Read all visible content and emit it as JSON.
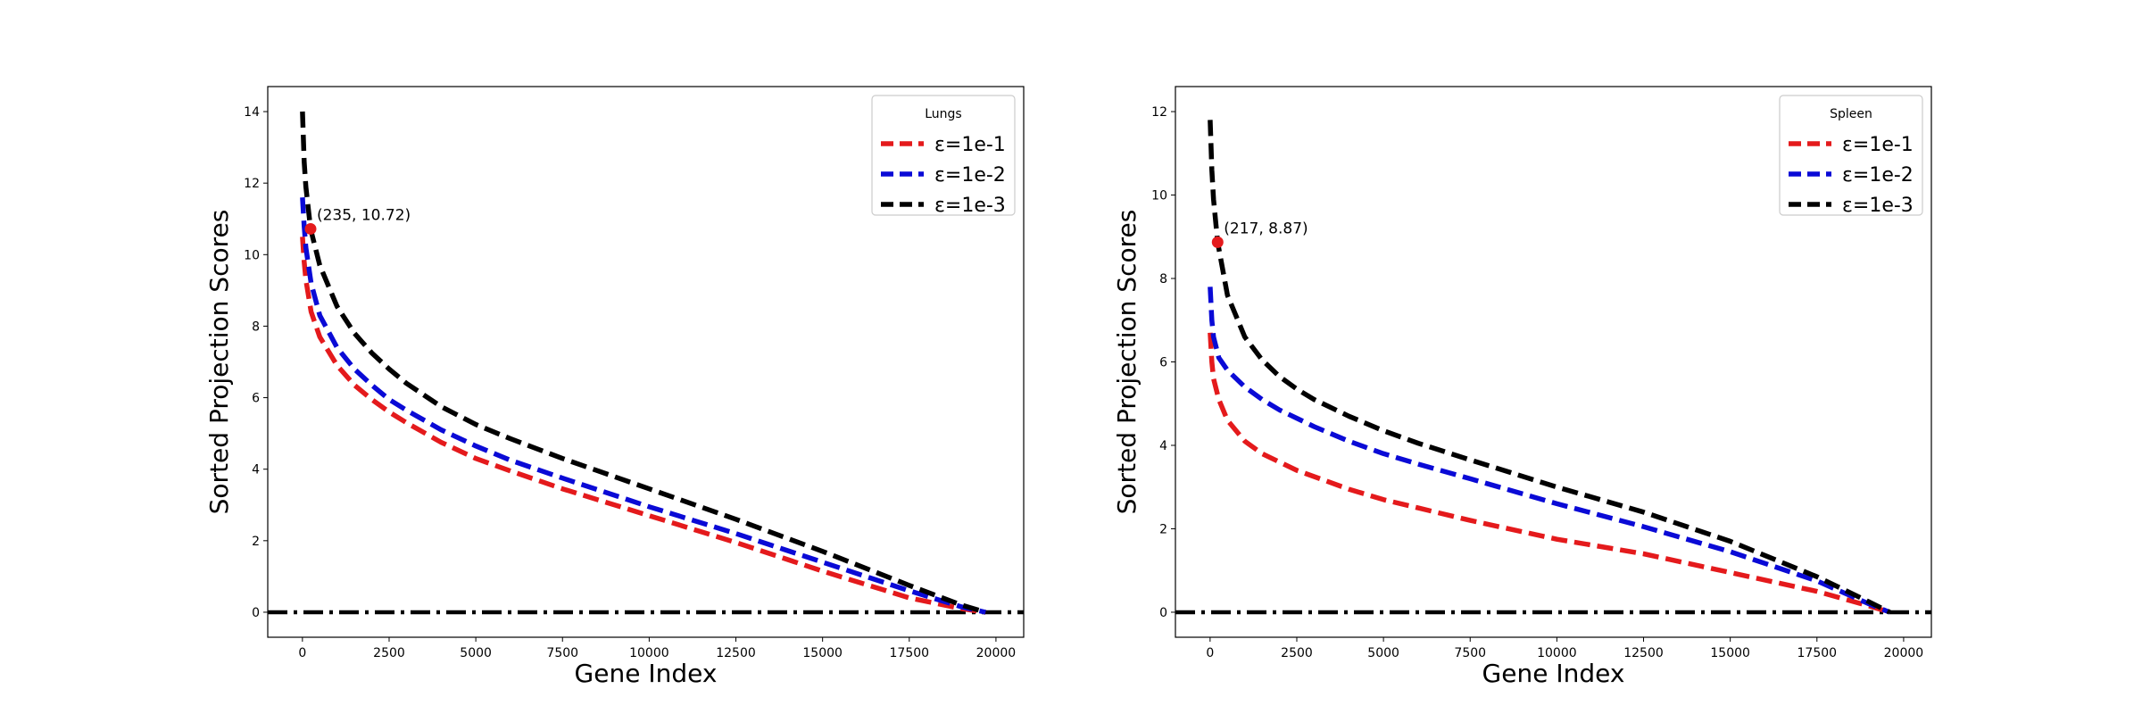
{
  "chart_data": [
    {
      "type": "line",
      "xlabel": "Gene Index",
      "ylabel": "Sorted Projection Scores",
      "xlim": [
        -1000,
        20800
      ],
      "ylim": [
        -0.7,
        14.7
      ],
      "xticks": [
        0,
        2500,
        5000,
        7500,
        10000,
        12500,
        15000,
        17500,
        20000
      ],
      "xtick_labels": [
        "0",
        "2500",
        "5000",
        "7500",
        "10000",
        "12500",
        "15000",
        "17500",
        "20000"
      ],
      "yticks": [
        0,
        2,
        4,
        6,
        8,
        10,
        12,
        14
      ],
      "ytick_labels": [
        "0",
        "2",
        "4",
        "6",
        "8",
        "10",
        "12",
        "14"
      ],
      "grid": false,
      "legend": {
        "title": "Lungs",
        "placement": "top-right"
      },
      "reference_line": {
        "y": 0,
        "style": "dash-dot",
        "color": "#000000"
      },
      "series": [
        {
          "name": "ε=1e-1",
          "color": "#e41a1c",
          "style": "dashed",
          "x": [
            0,
            50,
            100,
            250,
            500,
            1000,
            1500,
            2000,
            2500,
            3000,
            4000,
            5000,
            6000,
            7500,
            10000,
            12500,
            15000,
            17500,
            19000,
            19700
          ],
          "y": [
            10.5,
            9.8,
            9.3,
            8.4,
            7.7,
            6.9,
            6.35,
            5.95,
            5.6,
            5.3,
            4.75,
            4.3,
            3.95,
            3.45,
            2.7,
            1.95,
            1.15,
            0.4,
            0.1,
            0.0
          ]
        },
        {
          "name": "ε=1e-2",
          "color": "#0a0ad6",
          "style": "dashed",
          "x": [
            0,
            50,
            100,
            250,
            500,
            1000,
            1500,
            2000,
            2500,
            3000,
            4000,
            5000,
            6000,
            7500,
            10000,
            12500,
            15000,
            17500,
            19000,
            19700
          ],
          "y": [
            11.6,
            10.8,
            10.2,
            9.2,
            8.3,
            7.4,
            6.8,
            6.35,
            5.95,
            5.65,
            5.1,
            4.65,
            4.25,
            3.75,
            2.95,
            2.2,
            1.4,
            0.6,
            0.15,
            0.0
          ]
        },
        {
          "name": "ε=1e-3",
          "color": "#000000",
          "style": "dashed",
          "x": [
            0,
            50,
            100,
            235,
            500,
            1000,
            1500,
            2000,
            2500,
            3000,
            4000,
            5000,
            6000,
            7500,
            10000,
            12500,
            15000,
            17500,
            19000,
            19700
          ],
          "y": [
            14.0,
            12.6,
            11.9,
            10.72,
            9.7,
            8.55,
            7.8,
            7.25,
            6.8,
            6.4,
            5.75,
            5.25,
            4.85,
            4.3,
            3.45,
            2.6,
            1.7,
            0.75,
            0.2,
            0.0
          ]
        }
      ],
      "highlight_point": {
        "x": 235,
        "y": 10.72,
        "label": "(235, 10.72)",
        "color": "#e41a1c"
      }
    },
    {
      "type": "line",
      "xlabel": "Gene Index",
      "ylabel": "Sorted Projection Scores",
      "xlim": [
        -1000,
        20800
      ],
      "ylim": [
        -0.6,
        12.6
      ],
      "xticks": [
        0,
        2500,
        5000,
        7500,
        10000,
        12500,
        15000,
        17500,
        20000
      ],
      "xtick_labels": [
        "0",
        "2500",
        "5000",
        "7500",
        "10000",
        "12500",
        "15000",
        "17500",
        "20000"
      ],
      "yticks": [
        0,
        2,
        4,
        6,
        8,
        10,
        12
      ],
      "ytick_labels": [
        "0",
        "2",
        "4",
        "6",
        "8",
        "10",
        "12"
      ],
      "grid": false,
      "legend": {
        "title": "Spleen",
        "placement": "top-right"
      },
      "reference_line": {
        "y": 0,
        "style": "dash-dot",
        "color": "#000000"
      },
      "series": [
        {
          "name": "ε=1e-1",
          "color": "#e41a1c",
          "style": "dashed",
          "x": [
            0,
            50,
            100,
            250,
            500,
            1000,
            1500,
            2000,
            2500,
            3000,
            4000,
            5000,
            6000,
            7500,
            10000,
            12500,
            15000,
            17500,
            19000,
            19600
          ],
          "y": [
            6.7,
            6.0,
            5.6,
            5.1,
            4.6,
            4.1,
            3.8,
            3.6,
            3.4,
            3.25,
            2.95,
            2.7,
            2.5,
            2.2,
            1.75,
            1.4,
            0.95,
            0.5,
            0.15,
            0.0
          ]
        },
        {
          "name": "ε=1e-2",
          "color": "#0a0ad6",
          "style": "dashed",
          "x": [
            0,
            50,
            100,
            250,
            500,
            1000,
            1500,
            2000,
            2500,
            3000,
            4000,
            5000,
            6000,
            7500,
            10000,
            12500,
            15000,
            17500,
            19000,
            19600
          ],
          "y": [
            7.8,
            7.0,
            6.6,
            6.1,
            5.8,
            5.4,
            5.1,
            4.85,
            4.65,
            4.45,
            4.1,
            3.8,
            3.55,
            3.2,
            2.6,
            2.05,
            1.45,
            0.75,
            0.2,
            0.0
          ]
        },
        {
          "name": "ε=1e-3",
          "color": "#000000",
          "style": "dashed",
          "x": [
            0,
            50,
            100,
            217,
            500,
            1000,
            1500,
            2000,
            2500,
            3000,
            4000,
            5000,
            6000,
            7500,
            10000,
            12500,
            15000,
            17500,
            19000,
            19600
          ],
          "y": [
            11.8,
            10.6,
            9.9,
            8.87,
            7.6,
            6.6,
            6.05,
            5.65,
            5.35,
            5.1,
            4.7,
            4.35,
            4.05,
            3.65,
            3.0,
            2.4,
            1.7,
            0.85,
            0.25,
            0.0
          ]
        }
      ],
      "highlight_point": {
        "x": 217,
        "y": 8.87,
        "label": "(217, 8.87)",
        "color": "#e41a1c"
      }
    }
  ]
}
